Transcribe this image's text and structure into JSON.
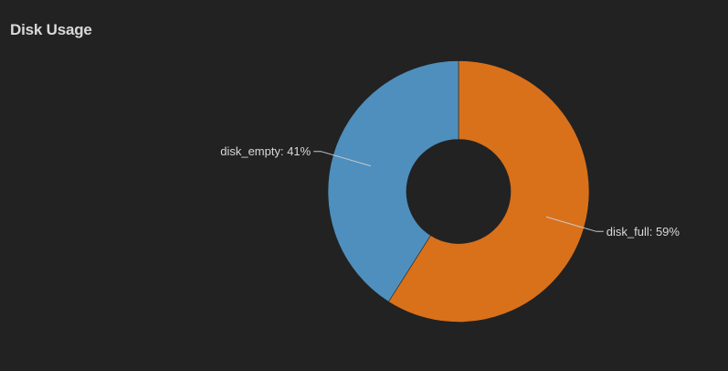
{
  "panel": {
    "title": "Disk Usage"
  },
  "chart_data": {
    "type": "pie",
    "donut": true,
    "title": "Disk Usage",
    "label_format": "{name}: {percent}%",
    "slices": [
      {
        "name": "disk_full",
        "value": 59,
        "color": "#d9711a"
      },
      {
        "name": "disk_empty",
        "value": 41,
        "color": "#4e8fbd"
      }
    ],
    "start_angle_deg": 0,
    "direction": "clockwise"
  }
}
